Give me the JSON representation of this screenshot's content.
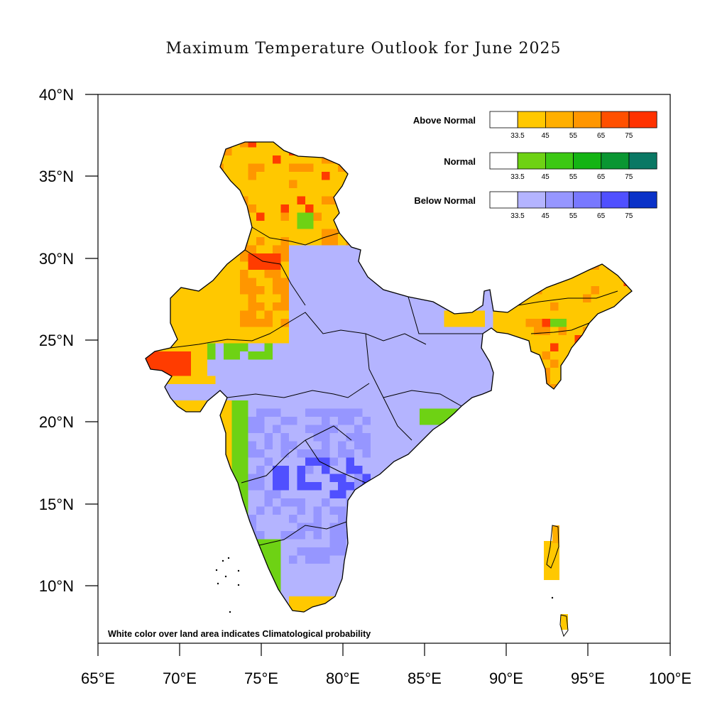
{
  "title": "Maximum Temperature Outlook for June 2025",
  "axes": {
    "y_ticks": [
      "40°N",
      "35°N",
      "30°N",
      "25°N",
      "20°N",
      "15°N",
      "10°N"
    ],
    "x_ticks": [
      "65°E",
      "70°E",
      "75°E",
      "80°E",
      "85°E",
      "90°E",
      "95°E",
      "100°E"
    ]
  },
  "legend": {
    "groups": [
      {
        "label": "Above Normal",
        "colors": [
          "#ffffff",
          "#ffc800",
          "#ffaf00",
          "#ff9600",
          "#ff5000",
          "#ff3200"
        ]
      },
      {
        "label": "Normal",
        "colors": [
          "#ffffff",
          "#6ed214",
          "#3cc814",
          "#14b414",
          "#0a9632",
          "#0a7864"
        ]
      },
      {
        "label": "Below Normal",
        "colors": [
          "#ffffff",
          "#b4b4ff",
          "#9696ff",
          "#7878ff",
          "#5050ff",
          "#0a32c8"
        ]
      }
    ],
    "ticks": [
      "33.5",
      "45",
      "55",
      "65",
      "75"
    ]
  },
  "note": "White color over land area indicates Climatological probability",
  "colors": {
    "above_normal": "#ffc800",
    "above_strong": "#ff9600",
    "above_extreme": "#ff3c00",
    "normal": "#6ed214",
    "below_normal": "#b4b4ff",
    "below_medium": "#9696ff",
    "below_strong": "#5050ff"
  }
}
